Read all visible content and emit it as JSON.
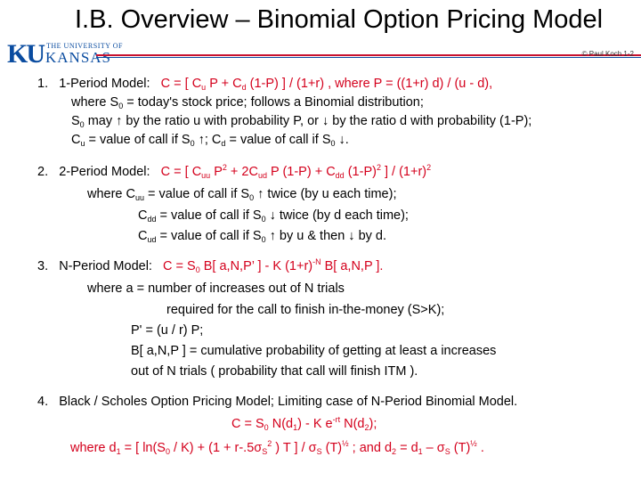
{
  "slide": {
    "title": "I.B.  Overview – Binomial Option Pricing Model",
    "copyright": "© Paul Koch 1-2",
    "logo": {
      "top": "THE UNIVERSITY OF",
      "mark": "KU",
      "name": "KANSAS"
    }
  },
  "item1": {
    "num": "1.",
    "label": "1-Period Model:",
    "formula": {
      "a": "C  =  [ C",
      "b": "u",
      "c": " P + C",
      "d": "d",
      "e": " (1-P) ] / (1+r) ,  where  P  =  ((1+r) d) / (u - d),"
    },
    "where": {
      "a": "where  S",
      "b": "0",
      "c": "  =  today's stock price;  follows a  Binomial distribution;"
    },
    "may": {
      "a": "S",
      "b": "0",
      "c": "  may  ↑  by the ratio  u  with probability P,  or ↓ by the ratio  d  with probability (1-P);"
    },
    "cu": {
      "a": "C",
      "b": "u",
      "c": "  =  value of call  if  S",
      "d": "0",
      "e": " ↑;          C",
      "f": "d",
      "g": "  =  value of call  if  S",
      "h": "0",
      "i": " ↓."
    }
  },
  "item2": {
    "num": "2.",
    "label": "2-Period Model:",
    "formula": {
      "a": "C  =  [ C",
      "b": "uu",
      "c": " P",
      "d": "2",
      "e": " + 2C",
      "f": "ud",
      "g": " P (1-P) + C",
      "h": "dd",
      "i": " (1-P)",
      "j": "2",
      "k": " ] / (1+r)",
      "l": "2"
    },
    "cuu": {
      "a": "where    C",
      "b": "uu",
      "c": "  =  value of call if  S",
      "d": "0",
      "e": " ↑  twice  (by u each time);"
    },
    "cdd": {
      "a": "C",
      "b": "dd",
      "c": "  =  value of call if  S",
      "d": "0",
      "e": " ↓  twice  (by d each time);"
    },
    "cud": {
      "a": "C",
      "b": "ud",
      "c": "  =  value of call if  S",
      "d": "0",
      "e": " ↑  by u  &  then  ↓  by d."
    }
  },
  "item3": {
    "num": "3.",
    "label": "N-Period Model:",
    "formula": {
      "a": "C  =  S",
      "b": "0",
      "c": " B[ a,N,P’ ]  -  K (1+r)",
      "d": "-N",
      "e": "  B[ a,N,P ]."
    },
    "l1": "where  a  =  number of increases  out of  N  trials",
    "l2": "required for the call to finish in-the-money (S>K);",
    "l3": "P'  =  (u / r) P;",
    "l4": "B[ a,N,P ]  =  cumulative probability  of getting  at least  a  increases",
    "l5": "out of N trials  ( probability that  call  will finish  ITM )."
  },
  "item4": {
    "num": "4.",
    "label": "Black / Scholes  Option Pricing Model;     Limiting case of  N-Period Binomial Model.",
    "formula": {
      "a": "C  =  S",
      "b": "0",
      "c": " N(d",
      "d": "1",
      "e": ")  -  K e",
      "f": "-rt",
      "g": " N(d",
      "h": "2",
      "i": ");"
    },
    "where": {
      "a": "where   d",
      "b": "1",
      "c": "  =  [ ln(S",
      "d": "0",
      "e": " / K) + (1 + r-.5σ",
      "f": "S",
      "g": "2",
      "h": " ) T ] / σ",
      "i": "S",
      "j": " (T)",
      "k": "½",
      "l": " ;    and    d",
      "m": "2",
      "n": "  =  d",
      "o": "1",
      "p": " – σ",
      "q": "S",
      "r": " (T)",
      "s": "½",
      "t": " ."
    }
  }
}
